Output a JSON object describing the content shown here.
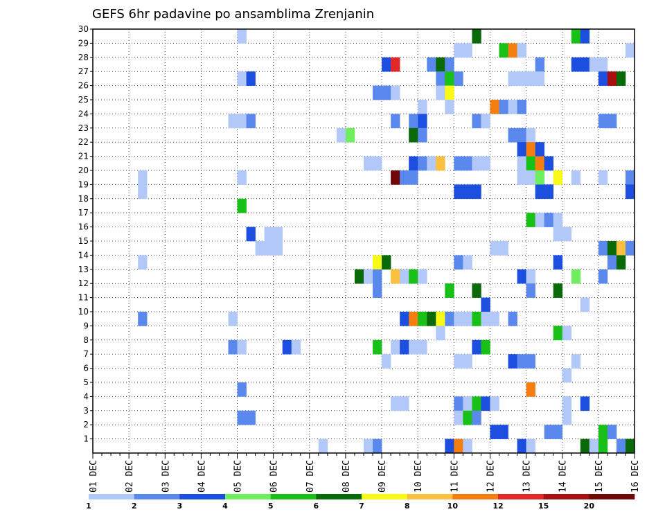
{
  "chart_data": {
    "type": "heatmap",
    "title": "GEFS 6hr padavine po ansamblima Zrenjanin",
    "xlabel": "",
    "ylabel": "",
    "x_ticks": [
      "01 DEC",
      "02 DEC",
      "03 DEC",
      "04 DEC",
      "05 DEC",
      "06 DEC",
      "07 DEC",
      "08 DEC",
      "09 DEC",
      "10 DEC",
      "11 DEC",
      "12 DEC",
      "13 DEC",
      "14 DEC",
      "15 DEC",
      "16 DEC"
    ],
    "x_unit": "6-hour steps from 01 DEC 00Z",
    "xlim": [
      0,
      60
    ],
    "ylim": [
      0,
      30
    ],
    "y_ticks": [
      1,
      2,
      3,
      4,
      5,
      6,
      7,
      8,
      9,
      10,
      11,
      12,
      13,
      14,
      15,
      16,
      17,
      18,
      19,
      20,
      21,
      22,
      23,
      24,
      25,
      26,
      27,
      28,
      29,
      30
    ],
    "grid": true,
    "legend": {
      "placement": "bottom",
      "labels": [
        "1",
        "2",
        "3",
        "4",
        "5",
        "6",
        "7",
        "8",
        "10",
        "12",
        "15",
        "20"
      ],
      "colors": [
        "#b2c8f8",
        "#5a88ec",
        "#1c4ee0",
        "#70ee60",
        "#18c018",
        "#0a6a0a",
        "#fafa18",
        "#fac040",
        "#f47e10",
        "#e02828",
        "#a81010",
        "#700808"
      ]
    },
    "cells": [
      [
        16,
        30,
        1
      ],
      [
        42,
        30,
        6
      ],
      [
        53,
        30,
        5
      ],
      [
        54,
        30,
        3
      ],
      [
        40,
        29,
        1
      ],
      [
        41,
        29,
        1
      ],
      [
        45,
        29,
        5
      ],
      [
        46,
        29,
        10
      ],
      [
        47,
        29,
        1
      ],
      [
        59,
        29,
        1
      ],
      [
        32,
        28,
        3
      ],
      [
        33,
        28,
        12
      ],
      [
        37,
        28,
        2
      ],
      [
        38,
        28,
        6
      ],
      [
        39,
        28,
        2
      ],
      [
        49,
        28,
        2
      ],
      [
        53,
        28,
        3
      ],
      [
        54,
        28,
        3
      ],
      [
        55,
        28,
        1
      ],
      [
        56,
        28,
        1
      ],
      [
        16,
        27,
        1
      ],
      [
        17,
        27,
        3
      ],
      [
        38,
        27,
        2
      ],
      [
        39,
        27,
        5
      ],
      [
        40,
        27,
        2
      ],
      [
        46,
        27,
        1
      ],
      [
        47,
        27,
        1
      ],
      [
        48,
        27,
        1
      ],
      [
        49,
        27,
        1
      ],
      [
        56,
        27,
        3
      ],
      [
        57,
        27,
        15
      ],
      [
        58,
        27,
        6
      ],
      [
        31,
        26,
        2
      ],
      [
        32,
        26,
        2
      ],
      [
        33,
        26,
        1
      ],
      [
        38,
        26,
        1
      ],
      [
        39,
        26,
        7
      ],
      [
        36,
        25,
        1
      ],
      [
        39,
        25,
        1
      ],
      [
        44,
        25,
        10
      ],
      [
        45,
        25,
        2
      ],
      [
        46,
        25,
        1
      ],
      [
        47,
        25,
        2
      ],
      [
        15,
        24,
        1
      ],
      [
        16,
        24,
        1
      ],
      [
        17,
        24,
        2
      ],
      [
        33,
        24,
        2
      ],
      [
        35,
        24,
        2
      ],
      [
        36,
        24,
        3
      ],
      [
        42,
        24,
        2
      ],
      [
        43,
        24,
        1
      ],
      [
        56,
        24,
        2
      ],
      [
        57,
        24,
        2
      ],
      [
        27,
        23,
        1
      ],
      [
        28,
        23,
        4
      ],
      [
        35,
        23,
        6
      ],
      [
        36,
        23,
        2
      ],
      [
        46,
        23,
        2
      ],
      [
        47,
        23,
        2
      ],
      [
        48,
        23,
        1
      ],
      [
        47,
        22,
        3
      ],
      [
        48,
        22,
        10
      ],
      [
        49,
        22,
        3
      ],
      [
        30,
        21,
        1
      ],
      [
        31,
        21,
        1
      ],
      [
        35,
        21,
        3
      ],
      [
        36,
        21,
        2
      ],
      [
        37,
        21,
        1
      ],
      [
        38,
        21,
        9
      ],
      [
        40,
        21,
        2
      ],
      [
        41,
        21,
        2
      ],
      [
        42,
        21,
        1
      ],
      [
        43,
        21,
        1
      ],
      [
        47,
        21,
        1
      ],
      [
        48,
        21,
        5
      ],
      [
        49,
        21,
        10
      ],
      [
        50,
        21,
        3
      ],
      [
        5,
        20,
        1
      ],
      [
        16,
        20,
        1
      ],
      [
        33,
        20,
        20
      ],
      [
        34,
        20,
        2
      ],
      [
        35,
        20,
        2
      ],
      [
        47,
        20,
        1
      ],
      [
        48,
        20,
        1
      ],
      [
        49,
        20,
        4
      ],
      [
        51,
        20,
        7
      ],
      [
        53,
        20,
        1
      ],
      [
        56,
        20,
        1
      ],
      [
        59,
        20,
        2
      ],
      [
        5,
        19,
        1
      ],
      [
        40,
        19,
        3
      ],
      [
        41,
        19,
        3
      ],
      [
        42,
        19,
        3
      ],
      [
        49,
        19,
        3
      ],
      [
        50,
        19,
        3
      ],
      [
        59,
        19,
        3
      ],
      [
        16,
        18,
        5
      ],
      [
        48,
        17,
        5
      ],
      [
        49,
        17,
        1
      ],
      [
        50,
        17,
        2
      ],
      [
        51,
        17,
        1
      ],
      [
        17,
        16,
        3
      ],
      [
        19,
        16,
        1
      ],
      [
        20,
        16,
        1
      ],
      [
        51,
        16,
        1
      ],
      [
        52,
        16,
        1
      ],
      [
        18,
        15,
        1
      ],
      [
        19,
        15,
        1
      ],
      [
        20,
        15,
        1
      ],
      [
        44,
        15,
        1
      ],
      [
        45,
        15,
        1
      ],
      [
        56,
        15,
        2
      ],
      [
        57,
        15,
        6
      ],
      [
        58,
        15,
        9
      ],
      [
        59,
        15,
        2
      ],
      [
        5,
        14,
        1
      ],
      [
        31,
        14,
        7
      ],
      [
        32,
        14,
        6
      ],
      [
        40,
        14,
        2
      ],
      [
        41,
        14,
        1
      ],
      [
        51,
        14,
        3
      ],
      [
        57,
        14,
        2
      ],
      [
        58,
        14,
        6
      ],
      [
        29,
        13,
        6
      ],
      [
        30,
        13,
        1
      ],
      [
        31,
        13,
        2
      ],
      [
        33,
        13,
        9
      ],
      [
        34,
        13,
        1
      ],
      [
        35,
        13,
        5
      ],
      [
        36,
        13,
        1
      ],
      [
        47,
        13,
        3
      ],
      [
        48,
        13,
        1
      ],
      [
        53,
        13,
        4
      ],
      [
        56,
        13,
        2
      ],
      [
        31,
        12,
        2
      ],
      [
        39,
        12,
        5
      ],
      [
        42,
        12,
        6
      ],
      [
        48,
        12,
        2
      ],
      [
        51,
        12,
        6
      ],
      [
        43,
        11,
        3
      ],
      [
        54,
        11,
        1
      ],
      [
        5,
        10,
        2
      ],
      [
        15,
        10,
        1
      ],
      [
        34,
        10,
        3
      ],
      [
        35,
        10,
        11
      ],
      [
        36,
        10,
        5
      ],
      [
        37,
        10,
        6
      ],
      [
        38,
        10,
        7
      ],
      [
        39,
        10,
        2
      ],
      [
        40,
        10,
        1
      ],
      [
        41,
        10,
        1
      ],
      [
        42,
        10,
        5
      ],
      [
        43,
        10,
        1
      ],
      [
        44,
        10,
        1
      ],
      [
        46,
        10,
        2
      ],
      [
        38,
        9,
        1
      ],
      [
        51,
        9,
        5
      ],
      [
        52,
        9,
        1
      ],
      [
        15,
        8,
        2
      ],
      [
        16,
        8,
        1
      ],
      [
        21,
        8,
        3
      ],
      [
        22,
        8,
        1
      ],
      [
        31,
        8,
        5
      ],
      [
        33,
        8,
        1
      ],
      [
        34,
        8,
        3
      ],
      [
        35,
        8,
        1
      ],
      [
        36,
        8,
        1
      ],
      [
        42,
        8,
        3
      ],
      [
        43,
        8,
        5
      ],
      [
        32,
        7,
        1
      ],
      [
        40,
        7,
        1
      ],
      [
        41,
        7,
        1
      ],
      [
        46,
        7,
        3
      ],
      [
        47,
        7,
        2
      ],
      [
        48,
        7,
        2
      ],
      [
        53,
        7,
        1
      ],
      [
        52,
        6,
        1
      ],
      [
        16,
        5,
        2
      ],
      [
        48,
        5,
        10
      ],
      [
        33,
        4,
        1
      ],
      [
        34,
        4,
        1
      ],
      [
        40,
        4,
        2
      ],
      [
        41,
        4,
        1
      ],
      [
        42,
        4,
        5
      ],
      [
        43,
        4,
        3
      ],
      [
        44,
        4,
        1
      ],
      [
        52,
        4,
        1
      ],
      [
        54,
        4,
        3
      ],
      [
        16,
        3,
        2
      ],
      [
        17,
        3,
        2
      ],
      [
        40,
        3,
        1
      ],
      [
        41,
        3,
        5
      ],
      [
        42,
        3,
        2
      ],
      [
        52,
        3,
        1
      ],
      [
        44,
        2,
        3
      ],
      [
        45,
        2,
        3
      ],
      [
        50,
        2,
        2
      ],
      [
        51,
        2,
        2
      ],
      [
        56,
        2,
        5
      ],
      [
        57,
        2,
        2
      ],
      [
        25,
        1,
        1
      ],
      [
        30,
        1,
        1
      ],
      [
        31,
        1,
        2
      ],
      [
        39,
        1,
        3
      ],
      [
        40,
        1,
        11
      ],
      [
        41,
        1,
        1
      ],
      [
        47,
        1,
        3
      ],
      [
        48,
        1,
        1
      ],
      [
        54,
        1,
        6
      ],
      [
        55,
        1,
        1
      ],
      [
        56,
        1,
        5
      ],
      [
        58,
        1,
        2
      ],
      [
        59,
        1,
        6
      ]
    ]
  }
}
